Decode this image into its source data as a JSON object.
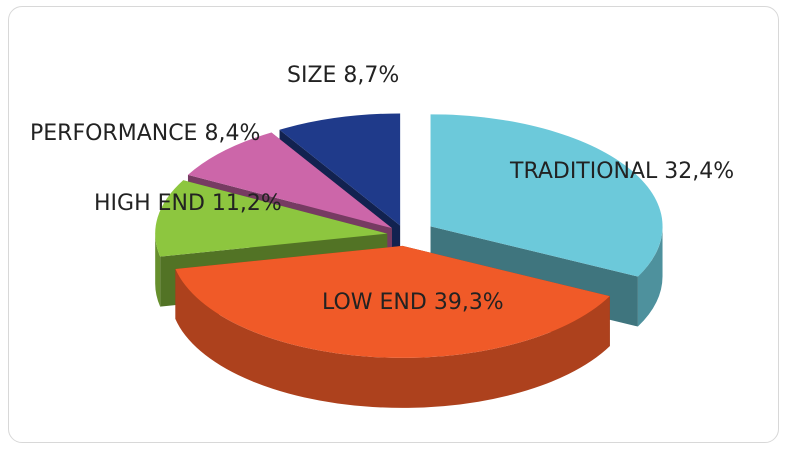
{
  "chart_data": {
    "type": "pie",
    "title": "",
    "style": "3d-exploded",
    "slices": [
      {
        "label": "TRADITIONAL",
        "value_text": "32,4%",
        "value": 32.4,
        "color": "#6cc9da"
      },
      {
        "label": "LOW END",
        "value_text": "39,3%",
        "value": 39.3,
        "color": "#f05a28"
      },
      {
        "label": "HIGH END",
        "value_text": "11,2%",
        "value": 11.2,
        "color": "#8dc63f"
      },
      {
        "label": "PERFORMANCE",
        "value_text": "8,4%",
        "value": 8.4,
        "color": "#cc66a9"
      },
      {
        "label": "SIZE",
        "value_text": "8,7%",
        "value": 8.7,
        "color": "#1f3a8a"
      }
    ]
  }
}
